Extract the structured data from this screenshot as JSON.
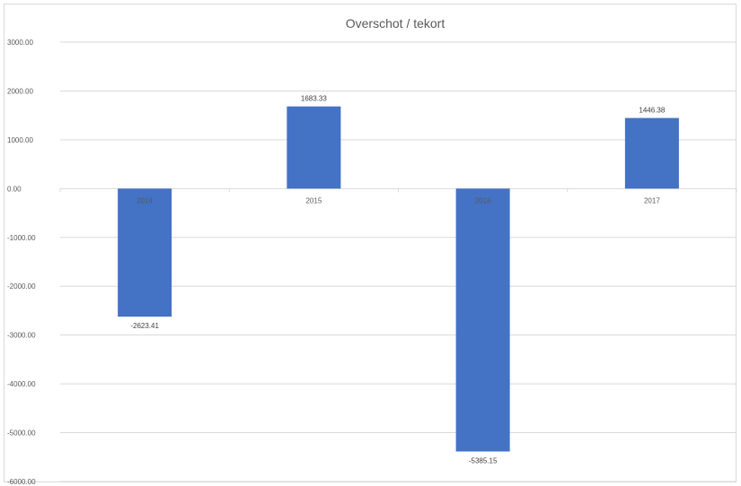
{
  "chart_data": {
    "type": "bar",
    "title": "Overschot / tekort",
    "categories": [
      "2014",
      "2015",
      "2016",
      "2017"
    ],
    "values": [
      -2623.41,
      1683.33,
      -5385.15,
      1446.38
    ],
    "data_labels": [
      "-2623.41",
      "1683.33",
      "-5385.15",
      "1446.38"
    ],
    "ylim": [
      -6000,
      3000
    ],
    "y_ticks": [
      3000,
      2000,
      1000,
      0,
      -1000,
      -2000,
      -3000,
      -4000,
      -5000,
      -6000
    ],
    "y_tick_labels": [
      "3000.00",
      "2000.00",
      "1000.00",
      "0.00",
      "-1000.00",
      "-2000.00",
      "-3000.00",
      "-4000.00",
      "-5000.00",
      "-6000.00"
    ],
    "xlabel": "",
    "ylabel": "",
    "grid": true,
    "legend": "none",
    "bar_color": "#4472c4",
    "grid_color": "#d9d9d9"
  }
}
